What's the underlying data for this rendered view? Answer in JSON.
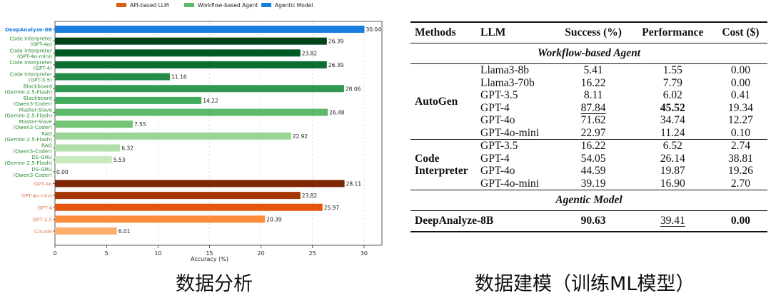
{
  "chart_data": {
    "type": "bar",
    "orientation": "horizontal",
    "xlabel": "Accuracy (%)",
    "ylabel": "",
    "xlim": [
      0,
      31.5
    ],
    "xticks": [
      0,
      5,
      10,
      15,
      20,
      25,
      30
    ],
    "grid": "vertical dashed",
    "legend_position": "top",
    "legend": [
      {
        "name": "API-based LLM",
        "color": "#d95f0e"
      },
      {
        "name": "Workflow-based Agent",
        "color": "#5db96a"
      },
      {
        "name": "Agentic Model",
        "color": "#1a7de0"
      }
    ],
    "categories": [
      "DeepAnalyze-8B",
      "Code Interpreter\n(GPT-4o)",
      "Code Interpreter\n(GPT-4o-mini)",
      "Code Interpreter\n(GPT-4)",
      "Code Interpreter\n(GPT-3.5)",
      "Blackboard\n(Gemini-2.5-Flash)",
      "Blackboard\n(Qwen3-Coder)",
      "Master-Slave\n(Gemini-2.5-Flash)",
      "Master-Slave\n(Qwen3-Coder)",
      "RAG\n(Gemini-2.5-Flash)",
      "RAG\n(Qwen3-Coder)",
      "DS-GRU\n(Gemini-2.5-Flash)",
      "DS-GRU\n(Qwen3-Coder)",
      "GPT-4o",
      "GPT-4o-mini",
      "GPT-4",
      "GPT-3.5",
      "Claude"
    ],
    "groups": [
      "Agentic Model",
      "Workflow-based Agent",
      "Workflow-based Agent",
      "Workflow-based Agent",
      "Workflow-based Agent",
      "Workflow-based Agent",
      "Workflow-based Agent",
      "Workflow-based Agent",
      "Workflow-based Agent",
      "Workflow-based Agent",
      "Workflow-based Agent",
      "Workflow-based Agent",
      "Workflow-based Agent",
      "API-based LLM",
      "API-based LLM",
      "API-based LLM",
      "API-based LLM",
      "API-based LLM"
    ],
    "values": [
      30.04,
      26.39,
      23.82,
      26.39,
      11.16,
      28.06,
      14.22,
      26.48,
      7.55,
      22.92,
      6.32,
      5.53,
      0.0,
      28.11,
      23.82,
      25.97,
      20.39,
      6.01
    ],
    "value_labels": [
      "30.04",
      "26.39",
      "23.82",
      "26.39",
      "11.16",
      "28.06",
      "14.22",
      "26.48",
      "7.55",
      "22.92",
      "6.32",
      "5.53",
      "0.00",
      "28.11",
      "23.82",
      "25.97",
      "20.39",
      "6.01"
    ],
    "bar_colors": [
      "#1a7de0",
      "#00441b",
      "#005a24",
      "#0b6e2e",
      "#238b45",
      "#2f9a4f",
      "#41ab5d",
      "#5db96a",
      "#74c476",
      "#99d595",
      "#b2e0ab",
      "#c7e9c0",
      "#e5f5e0",
      "#7f2704",
      "#a63603",
      "#e6550d",
      "#fd8d3c",
      "#fdae6b"
    ],
    "label_colors": {
      "Agentic Model": "#1a7de0",
      "Workflow-based Agent": "#2e8b34",
      "API-based LLM": "#e07b5b"
    }
  },
  "table": {
    "headers": [
      "Methods",
      "LLM",
      "Success (%)",
      "Performance",
      "Cost ($)"
    ],
    "section_workflow": "Workflow-based Agent",
    "section_agentic": "Agentic Model",
    "groups": [
      {
        "method": "AutoGen",
        "rows": [
          {
            "llm": "Llama3-8b",
            "success": "5.41",
            "performance": "1.55",
            "cost": "0.00"
          },
          {
            "llm": "Llama3-70b",
            "success": "16.22",
            "performance": "7.79",
            "cost": "0.00"
          },
          {
            "llm": "GPT-3.5",
            "success": "8.11",
            "performance": "6.02",
            "cost": "0.41"
          },
          {
            "llm": "GPT-4",
            "success": "87.84",
            "performance": "45.52",
            "cost": "19.34",
            "success_style": "underline",
            "performance_style": "bold"
          },
          {
            "llm": "GPT-4o",
            "success": "71.62",
            "performance": "34.74",
            "cost": "12.27"
          },
          {
            "llm": "GPT-4o-mini",
            "success": "22.97",
            "performance": "11.24",
            "cost": "0.10"
          }
        ]
      },
      {
        "method": "Code Interpreter",
        "rows": [
          {
            "llm": "GPT-3.5",
            "success": "16.22",
            "performance": "6.52",
            "cost": "2.74"
          },
          {
            "llm": "GPT-4",
            "success": "54.05",
            "performance": "26.14",
            "cost": "38.81"
          },
          {
            "llm": "GPT-4o",
            "success": "44.59",
            "performance": "19.87",
            "cost": "19.26"
          },
          {
            "llm": "GPT-4o-mini",
            "success": "39.19",
            "performance": "16.90",
            "cost": "2.70"
          }
        ]
      }
    ],
    "agentic": {
      "method": "DeepAnalyze-8B",
      "llm": "",
      "success": "90.63",
      "performance": "39.41",
      "cost": "0.00",
      "success_style": "bold",
      "performance_style": "underline",
      "cost_style": "bold"
    }
  },
  "captions": {
    "left": "数据分析",
    "right": "数据建模（训练ML模型）"
  }
}
